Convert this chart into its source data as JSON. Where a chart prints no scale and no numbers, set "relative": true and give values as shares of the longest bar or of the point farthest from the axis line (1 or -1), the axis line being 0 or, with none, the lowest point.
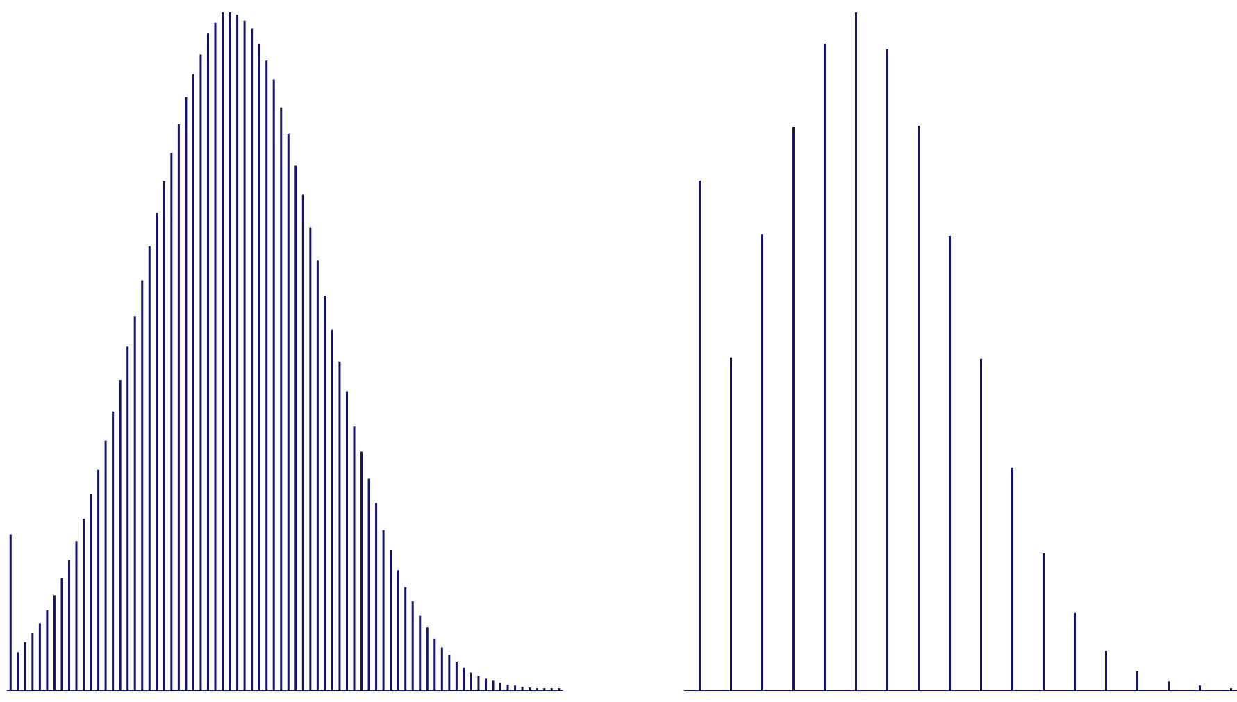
{
  "chart_data": [
    {
      "type": "bar",
      "relative": true,
      "color": "#14146e",
      "categories": [
        null,
        null,
        null,
        null,
        null,
        null,
        null,
        null,
        null,
        null,
        null,
        null,
        null,
        null,
        null,
        null,
        null,
        null,
        null,
        null,
        null,
        null,
        null,
        null,
        null,
        null,
        null,
        null,
        null,
        null,
        null,
        null,
        null,
        null,
        null,
        null,
        null,
        null,
        null,
        null,
        null,
        null,
        null,
        null,
        null,
        null,
        null,
        null,
        null,
        null,
        null,
        null,
        null,
        null,
        null,
        null,
        null,
        null,
        null,
        null,
        null,
        null,
        null,
        null,
        null,
        null,
        null,
        null,
        null,
        null,
        null,
        null,
        null,
        null,
        null,
        null
      ],
      "values": [
        0.23,
        0.056,
        0.071,
        0.084,
        0.099,
        0.118,
        0.14,
        0.165,
        0.192,
        0.22,
        0.253,
        0.289,
        0.325,
        0.368,
        0.411,
        0.458,
        0.507,
        0.552,
        0.605,
        0.655,
        0.704,
        0.751,
        0.793,
        0.835,
        0.875,
        0.909,
        0.938,
        0.969,
        0.985,
        1,
        1,
        0.997,
        0.988,
        0.976,
        0.954,
        0.929,
        0.901,
        0.86,
        0.821,
        0.774,
        0.731,
        0.683,
        0.634,
        0.582,
        0.532,
        0.485,
        0.441,
        0.389,
        0.352,
        0.312,
        0.276,
        0.236,
        0.207,
        0.177,
        0.152,
        0.131,
        0.11,
        0.093,
        0.076,
        0.063,
        0.052,
        0.042,
        0.033,
        0.026,
        0.021,
        0.017,
        0.014,
        0.011,
        0.008,
        0.007,
        0.005,
        0.004,
        0.003,
        0.003,
        0.003,
        0.003
      ]
    },
    {
      "type": "bar",
      "relative": true,
      "color": "#14146e",
      "categories": [
        null,
        null,
        null,
        null,
        null,
        null,
        null,
        null,
        null,
        null,
        null,
        null,
        null,
        null,
        null,
        null,
        null,
        null
      ],
      "values": [
        0.752,
        0.491,
        0.673,
        0.831,
        0.954,
        1,
        0.946,
        0.833,
        0.67,
        0.489,
        0.328,
        0.202,
        0.114,
        0.058,
        0.028,
        0.013,
        0.007,
        0.003
      ]
    }
  ]
}
